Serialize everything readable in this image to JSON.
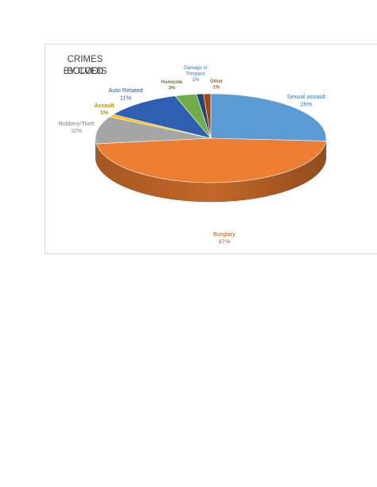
{
  "chart_data": {
    "type": "pie",
    "title": [
      "CRIMES SOLVED",
      "BY CODIS"
    ],
    "slices": [
      {
        "name": "Sexual assault",
        "value": 26,
        "label": "26%",
        "color": "#5b9bd5",
        "label_color": "#2e75b6"
      },
      {
        "name": "Burglary",
        "value": 47,
        "label": "47%",
        "color": "#ed7d31",
        "label_color": "#c55a11"
      },
      {
        "name": "Robbery/Theft",
        "value": 10,
        "label": "10%",
        "color": "#a5a5a5",
        "label_color": "#7f7f7f"
      },
      {
        "name": "Assault",
        "value": 1,
        "label": "1%",
        "color": "#ffc000",
        "label_color": "#bf9000"
      },
      {
        "name": "Auto Related",
        "value": 11,
        "label": "11%",
        "color": "#2f5fb3",
        "label_color": "#2f5597"
      },
      {
        "name": "Homicide",
        "value": 3,
        "label": "3%",
        "color": "#70ad47",
        "label_color": "#548235"
      },
      {
        "name": "Damage or Trespass",
        "value": 1,
        "label": "1%",
        "color": "#264478",
        "label_color": "#2e75b6"
      },
      {
        "name": "Other",
        "value": 1,
        "label": "1%",
        "color": "#9e480e",
        "label_color": "#c55a11"
      }
    ],
    "legend": "none",
    "style": "3d-pie"
  },
  "labels": {
    "sexual_assault": [
      "Sexual assault",
      "26%"
    ],
    "burglary": [
      "Burglary",
      "47%"
    ],
    "robbery": [
      "Robbery/Theft",
      "10%"
    ],
    "assault": [
      "Assault",
      "1%"
    ],
    "auto": [
      "Auto Related",
      "11%"
    ],
    "homicide": [
      "Homicide",
      "3%"
    ],
    "damage": [
      "Damage or",
      "Trespass",
      "1%"
    ],
    "other": [
      "Other",
      "1%"
    ]
  }
}
